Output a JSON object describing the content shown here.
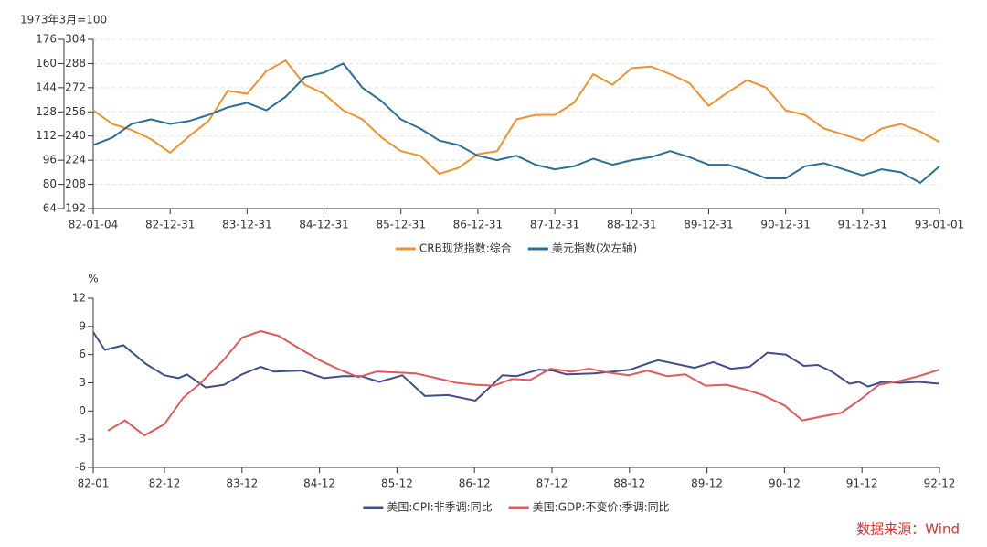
{
  "chart_data": [
    {
      "type": "line",
      "ylabel": "1973年3月=100",
      "x": [
        1982.0,
        1982.25,
        1982.5,
        1982.75,
        1983.0,
        1983.25,
        1983.5,
        1983.75,
        1984.0,
        1984.25,
        1984.5,
        1984.75,
        1985.0,
        1985.25,
        1985.5,
        1985.75,
        1986.0,
        1986.25,
        1986.5,
        1986.75,
        1987.0,
        1987.25,
        1987.5,
        1987.75,
        1988.0,
        1988.25,
        1988.5,
        1988.75,
        1989.0,
        1989.25,
        1989.5,
        1989.75,
        1990.0,
        1990.25,
        1990.5,
        1990.75,
        1991.0,
        1991.25,
        1991.5,
        1991.75,
        1992.0,
        1992.25,
        1992.5,
        1992.75,
        1993.0
      ],
      "xlim": [
        1982,
        1993
      ],
      "xticks": [
        {
          "value": 1982,
          "label": "82-01-04"
        },
        {
          "value": 1983,
          "label": "82-12-31"
        },
        {
          "value": 1984,
          "label": "83-12-31"
        },
        {
          "value": 1985,
          "label": "84-12-31"
        },
        {
          "value": 1986,
          "label": "85-12-31"
        },
        {
          "value": 1987,
          "label": "86-12-31"
        },
        {
          "value": 1988,
          "label": "87-12-31"
        },
        {
          "value": 1989,
          "label": "88-12-31"
        },
        {
          "value": 1990,
          "label": "89-12-31"
        },
        {
          "value": 1991,
          "label": "90-12-31"
        },
        {
          "value": 1992,
          "label": "91-12-31"
        },
        {
          "value": 1993,
          "label": "93-01-01"
        }
      ],
      "ylim": [
        64,
        176
      ],
      "yticks": [
        64,
        80,
        96,
        112,
        128,
        144,
        160,
        176
      ],
      "y2lim": [
        192,
        304
      ],
      "y2ticks": [
        192,
        208,
        224,
        240,
        256,
        272,
        288,
        304
      ],
      "grid": true,
      "legend": "bottom",
      "series": [
        {
          "name": "CRB现货指数:综合",
          "color": "#f0922e",
          "values": [
            129,
            120,
            116,
            110,
            101,
            112,
            122,
            142,
            140,
            155,
            162,
            146,
            140,
            129,
            123,
            111,
            102,
            99,
            87,
            91,
            100,
            102,
            123,
            126,
            126,
            134,
            153,
            146,
            157,
            158,
            153,
            147,
            132,
            141,
            149,
            144,
            129,
            126,
            117,
            113,
            109,
            117,
            120,
            115,
            108
          ]
        },
        {
          "name": "美元指数(次左轴)",
          "color": "#2a6f97",
          "axis": "y2",
          "values": [
            234,
            239,
            248,
            251,
            248,
            250,
            254,
            259,
            262,
            257,
            266,
            279,
            282,
            288,
            272,
            263,
            251,
            245,
            237,
            234,
            227,
            224,
            227,
            221,
            218,
            220,
            225,
            221,
            224,
            226,
            230,
            226,
            221,
            221,
            217,
            212,
            212,
            220,
            222,
            218,
            214,
            218,
            216,
            209,
            220
          ]
        }
      ]
    },
    {
      "type": "line",
      "ylabel": "%",
      "xlim": [
        1982,
        1992.92
      ],
      "xticks": [
        {
          "value": 1982,
          "label": "82-01"
        },
        {
          "value": 1982.92,
          "label": "82-12"
        },
        {
          "value": 1983.92,
          "label": "83-12"
        },
        {
          "value": 1984.92,
          "label": "84-12"
        },
        {
          "value": 1985.92,
          "label": "85-12"
        },
        {
          "value": 1986.92,
          "label": "86-12"
        },
        {
          "value": 1987.92,
          "label": "87-12"
        },
        {
          "value": 1988.92,
          "label": "88-12"
        },
        {
          "value": 1989.92,
          "label": "89-12"
        },
        {
          "value": 1990.92,
          "label": "90-12"
        },
        {
          "value": 1991.92,
          "label": "91-12"
        },
        {
          "value": 1992.92,
          "label": "92-12"
        }
      ],
      "ylim": [
        -6,
        12
      ],
      "yticks": [
        -6,
        -3,
        0,
        3,
        6,
        9,
        12
      ],
      "grid": false,
      "legend": "bottom",
      "series": [
        {
          "name": "美国:CPI:非季调:同比",
          "color": "#3f4e8c",
          "x": [
            1982.0,
            1982.15,
            1982.39,
            1982.68,
            1982.92,
            1983.1,
            1983.21,
            1983.45,
            1983.69,
            1983.92,
            1984.16,
            1984.33,
            1984.69,
            1984.98,
            1985.22,
            1985.46,
            1985.69,
            1985.99,
            1986.28,
            1986.58,
            1986.93,
            1987.05,
            1987.28,
            1987.46,
            1987.75,
            1987.93,
            1988.11,
            1988.46,
            1988.7,
            1988.93,
            1989.17,
            1989.29,
            1989.76,
            1990.0,
            1990.23,
            1990.47,
            1990.7,
            1990.94,
            1991.17,
            1991.35,
            1991.53,
            1991.76,
            1991.88,
            1992.0,
            1992.18,
            1992.41,
            1992.65,
            1992.92
          ],
          "values": [
            8.4,
            6.5,
            7.0,
            5.0,
            3.8,
            3.5,
            3.9,
            2.5,
            2.8,
            3.9,
            4.7,
            4.2,
            4.3,
            3.5,
            3.7,
            3.7,
            3.1,
            3.8,
            1.6,
            1.7,
            1.1,
            2.0,
            3.8,
            3.7,
            4.4,
            4.3,
            3.9,
            4.0,
            4.2,
            4.4,
            5.1,
            5.4,
            4.6,
            5.2,
            4.5,
            4.7,
            6.2,
            6.0,
            4.8,
            4.9,
            4.2,
            2.9,
            3.1,
            2.6,
            3.1,
            3.0,
            3.1,
            2.9
          ]
        },
        {
          "name": "美国:GDP:不变价:季调:同比",
          "color": "#e05a5a",
          "x": [
            1982.19,
            1982.41,
            1982.66,
            1982.92,
            1983.16,
            1983.39,
            1983.69,
            1983.92,
            1984.16,
            1984.39,
            1984.63,
            1984.92,
            1985.18,
            1985.42,
            1985.66,
            1985.93,
            1986.16,
            1986.43,
            1986.69,
            1986.93,
            1987.17,
            1987.4,
            1987.64,
            1987.9,
            1988.17,
            1988.4,
            1988.64,
            1988.91,
            1989.15,
            1989.41,
            1989.64,
            1989.9,
            1990.17,
            1990.41,
            1990.64,
            1990.92,
            1991.15,
            1991.39,
            1991.65,
            1991.88,
            1992.14,
            1992.41,
            1992.65,
            1992.92
          ],
          "values": [
            -2.1,
            -1.0,
            -2.6,
            -1.4,
            1.4,
            3.0,
            5.5,
            7.8,
            8.5,
            8.0,
            6.8,
            5.4,
            4.4,
            3.6,
            4.2,
            4.1,
            4.0,
            3.5,
            3.0,
            2.8,
            2.7,
            3.4,
            3.3,
            4.5,
            4.2,
            4.5,
            4.1,
            3.8,
            4.3,
            3.7,
            3.9,
            2.7,
            2.8,
            2.3,
            1.7,
            0.6,
            -1.0,
            -0.6,
            -0.2,
            1.1,
            2.8,
            3.2,
            3.7,
            4.4
          ]
        }
      ]
    }
  ],
  "source": "数据来源：Wind"
}
